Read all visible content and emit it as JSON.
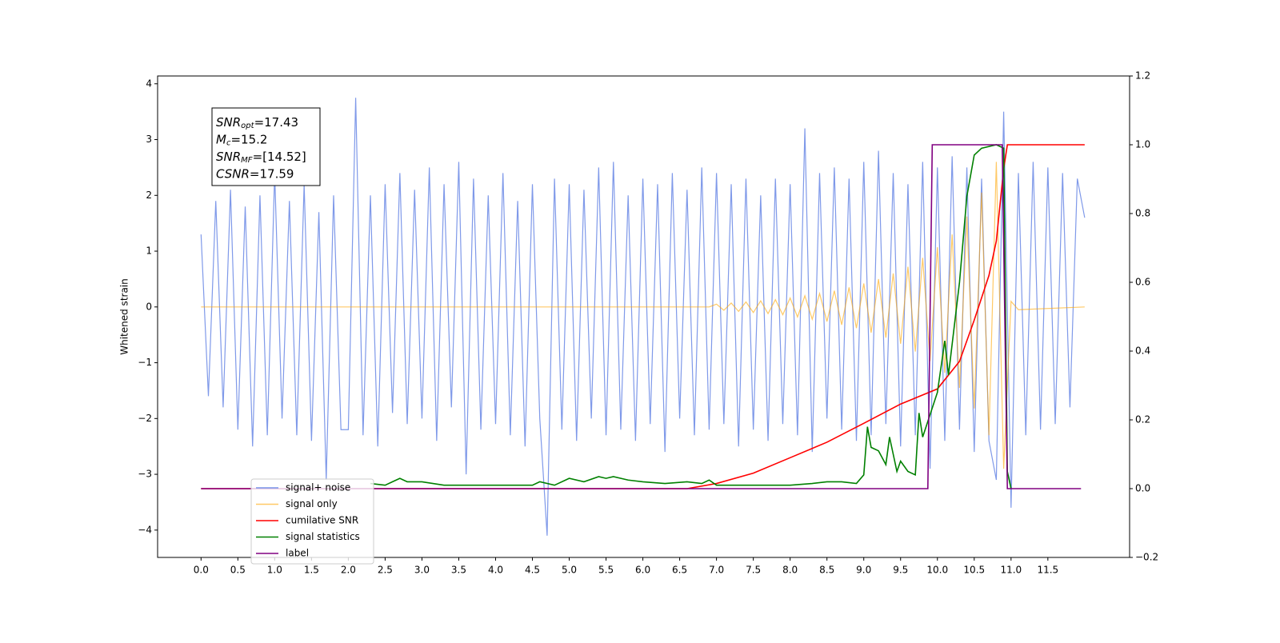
{
  "chart_data": {
    "type": "line",
    "ylabel": "Whitened strain",
    "xlim": [
      -0.59,
      12.61
    ],
    "ylim": [
      -4.49,
      4.14
    ],
    "y2lim": [
      -0.2,
      1.2
    ],
    "xticks": [
      {
        "value": 0,
        "label": "0.0"
      },
      0.5,
      {
        "value": 1,
        "label": "1.0"
      },
      1.5,
      {
        "value": 2,
        "label": "2.0"
      },
      2.5,
      {
        "value": 3,
        "label": "3.0"
      },
      3.5,
      {
        "value": 4,
        "label": "4.0"
      },
      4.5,
      {
        "value": 5,
        "label": "5.0"
      },
      5.5,
      {
        "value": 6,
        "label": "6.0"
      },
      6.5,
      {
        "value": 7,
        "label": "7.0"
      },
      7.5,
      {
        "value": 8,
        "label": "8.0"
      },
      8.5,
      {
        "value": 9,
        "label": "9.0"
      },
      9.5,
      {
        "value": 10,
        "label": "10.0"
      },
      10.5,
      {
        "value": 11,
        "label": "11.0"
      },
      11.5
    ],
    "yticks": [
      {
        "value": -4,
        "label": "−4"
      },
      {
        "value": -3,
        "label": "−3"
      },
      {
        "value": -2,
        "label": "−2"
      },
      {
        "value": -1,
        "label": "−1"
      },
      0,
      1,
      2,
      3,
      4
    ],
    "y2ticks": [
      {
        "value": -0.2,
        "label": "−0.2"
      },
      {
        "value": 0,
        "label": "0.0"
      },
      0.2,
      0.4,
      0.6,
      0.8,
      {
        "value": 1,
        "label": "1.0"
      },
      1.2
    ],
    "legend": "lower left",
    "annotations": [
      {
        "symbol": "SNR",
        "subscript": "opt",
        "text": "=17.43"
      },
      {
        "symbol": "M",
        "subscript": "c",
        "text": "=15.2"
      },
      {
        "symbol": "SNR",
        "subscript": "MF",
        "text": "=[14.52]"
      },
      {
        "symbol": "CSNR",
        "text": "=17.59"
      }
    ],
    "series": [
      {
        "name": "signal+ noise",
        "color": "#7893e8",
        "axis": "y",
        "x": [
          0,
          0.1,
          0.2,
          0.3,
          0.4,
          0.5,
          0.6,
          0.7,
          0.8,
          0.9,
          1,
          1.1,
          1.2,
          1.3,
          1.4,
          1.5,
          1.6,
          1.7,
          1.8,
          1.9,
          2,
          2.1,
          2.2,
          2.3,
          2.4,
          2.5,
          2.6,
          2.7,
          2.8,
          2.9,
          3,
          3.1,
          3.2,
          3.3,
          3.4,
          3.5,
          3.6,
          3.7,
          3.8,
          3.9,
          4,
          4.1,
          4.2,
          4.3,
          4.4,
          4.5,
          4.6,
          4.7,
          4.8,
          4.9,
          5,
          5.1,
          5.2,
          5.3,
          5.4,
          5.5,
          5.6,
          5.7,
          5.8,
          5.9,
          6,
          6.1,
          6.2,
          6.3,
          6.4,
          6.5,
          6.6,
          6.7,
          6.8,
          6.9,
          7,
          7.1,
          7.2,
          7.3,
          7.4,
          7.5,
          7.6,
          7.7,
          7.8,
          7.9,
          8,
          8.1,
          8.2,
          8.3,
          8.4,
          8.5,
          8.6,
          8.7,
          8.8,
          8.9,
          9,
          9.1,
          9.2,
          9.3,
          9.4,
          9.5,
          9.6,
          9.7,
          9.8,
          9.9,
          10,
          10.1,
          10.2,
          10.3,
          10.4,
          10.5,
          10.6,
          10.7,
          10.8,
          10.9,
          11,
          11.1,
          11.2,
          11.3,
          11.4,
          11.5,
          11.6,
          11.7,
          11.8,
          11.9,
          12
        ],
        "values": [
          1.3,
          -1.6,
          1.9,
          -1.8,
          2.1,
          -2.2,
          1.8,
          -2.5,
          2.0,
          -2.3,
          2.4,
          -2.0,
          1.9,
          -2.3,
          2.2,
          -2.4,
          1.7,
          -3.1,
          2.0,
          -2.2,
          -2.2,
          3.75,
          -2.3,
          2.0,
          -2.5,
          2.2,
          -1.9,
          2.4,
          -2.1,
          2.1,
          -2.0,
          2.5,
          -2.4,
          2.2,
          -1.8,
          2.6,
          -3.0,
          2.3,
          -2.2,
          2.0,
          -2.1,
          2.4,
          -2.3,
          1.9,
          -2.5,
          2.2,
          -2.0,
          -4.1,
          2.3,
          -2.2,
          2.2,
          -2.4,
          2.1,
          -2.0,
          2.5,
          -2.3,
          2.6,
          -2.2,
          2.0,
          -2.4,
          2.3,
          -2.1,
          2.2,
          -2.6,
          2.4,
          -2.0,
          2.1,
          -2.3,
          2.5,
          -2.2,
          2.4,
          -2.1,
          2.2,
          -2.5,
          2.3,
          -2.2,
          2.0,
          -2.4,
          2.3,
          -2.1,
          2.2,
          -2.3,
          3.2,
          -2.6,
          2.4,
          -2.0,
          2.5,
          -2.2,
          2.3,
          -2.4,
          2.6,
          -2.3,
          2.8,
          -2.1,
          2.4,
          -2.5,
          2.2,
          -2.3,
          2.6,
          -2.9,
          2.5,
          -2.4,
          2.7,
          -2.2,
          2.5,
          -2.6,
          2.3,
          -2.4,
          -3.1,
          3.5,
          -3.6,
          2.4,
          -2.3,
          2.6,
          -2.2,
          2.5,
          -2.1,
          2.4,
          -1.8,
          2.3,
          1.6
        ]
      },
      {
        "name": "signal only",
        "color": "#ffa500",
        "axis": "y",
        "x": [
          0,
          6.9,
          7,
          7.1,
          7.2,
          7.3,
          7.4,
          7.5,
          7.6,
          7.7,
          7.8,
          7.9,
          8,
          8.1,
          8.2,
          8.3,
          8.4,
          8.5,
          8.6,
          8.7,
          8.8,
          8.9,
          9,
          9.1,
          9.2,
          9.3,
          9.4,
          9.5,
          9.6,
          9.7,
          9.8,
          9.9,
          10,
          10.1,
          10.2,
          10.3,
          10.4,
          10.5,
          10.6,
          10.7,
          10.8,
          10.9,
          11,
          11.1,
          12
        ],
        "values": [
          0,
          0,
          0.05,
          -0.06,
          0.07,
          -0.08,
          0.09,
          -0.1,
          0.11,
          -0.12,
          0.13,
          -0.14,
          0.16,
          -0.18,
          0.2,
          -0.22,
          0.24,
          -0.26,
          0.29,
          -0.32,
          0.35,
          -0.38,
          0.42,
          -0.46,
          0.5,
          -0.55,
          0.6,
          -0.66,
          0.72,
          -0.8,
          0.88,
          -0.97,
          1.07,
          -1.18,
          1.3,
          -1.45,
          1.62,
          -1.82,
          2.05,
          -2.3,
          2.6,
          -2.9,
          0.1,
          -0.05,
          0
        ]
      },
      {
        "name": "cumilative SNR",
        "color": "#ff0000",
        "axis": "y2",
        "x": [
          0,
          6.6,
          7,
          7.5,
          8,
          8.5,
          9,
          9.5,
          10,
          10.3,
          10.5,
          10.7,
          10.8,
          10.9,
          10.95,
          12
        ],
        "values": [
          0,
          0,
          0.015,
          0.045,
          0.09,
          0.135,
          0.19,
          0.246,
          0.29,
          0.37,
          0.49,
          0.62,
          0.72,
          0.93,
          1.0,
          1.0
        ]
      },
      {
        "name": "signal statistics",
        "color": "#008000",
        "axis": "y2",
        "x": [
          2.3,
          2.5,
          2.6,
          2.7,
          2.8,
          3,
          3.3,
          3.6,
          4,
          4.5,
          4.6,
          4.8,
          5,
          5.2,
          5.4,
          5.5,
          5.6,
          5.8,
          6,
          6.3,
          6.6,
          6.8,
          6.9,
          7,
          7.3,
          7.6,
          8,
          8.3,
          8.5,
          8.7,
          8.9,
          9,
          9.05,
          9.1,
          9.2,
          9.3,
          9.35,
          9.45,
          9.5,
          9.6,
          9.7,
          9.75,
          9.8,
          10,
          10.1,
          10.15,
          10.3,
          10.4,
          10.5,
          10.6,
          10.8,
          10.9,
          10.95,
          11
        ],
        "values": [
          0.015,
          0.01,
          0.02,
          0.03,
          0.02,
          0.02,
          0.01,
          0.01,
          0.01,
          0.01,
          0.02,
          0.01,
          0.03,
          0.02,
          0.035,
          0.03,
          0.035,
          0.025,
          0.02,
          0.015,
          0.02,
          0.015,
          0.025,
          0.01,
          0.01,
          0.01,
          0.01,
          0.015,
          0.02,
          0.02,
          0.015,
          0.04,
          0.18,
          0.12,
          0.11,
          0.07,
          0.15,
          0.05,
          0.08,
          0.05,
          0.04,
          0.22,
          0.15,
          0.28,
          0.43,
          0.33,
          0.6,
          0.85,
          0.97,
          0.99,
          1.0,
          0.99,
          0.05,
          0.0
        ]
      },
      {
        "name": "label",
        "color": "#800080",
        "axis": "y2",
        "x": [
          0,
          9.87,
          9.93,
          10.88,
          10.95,
          11.95
        ],
        "values": [
          0,
          0,
          1,
          1,
          0,
          0
        ]
      }
    ]
  }
}
